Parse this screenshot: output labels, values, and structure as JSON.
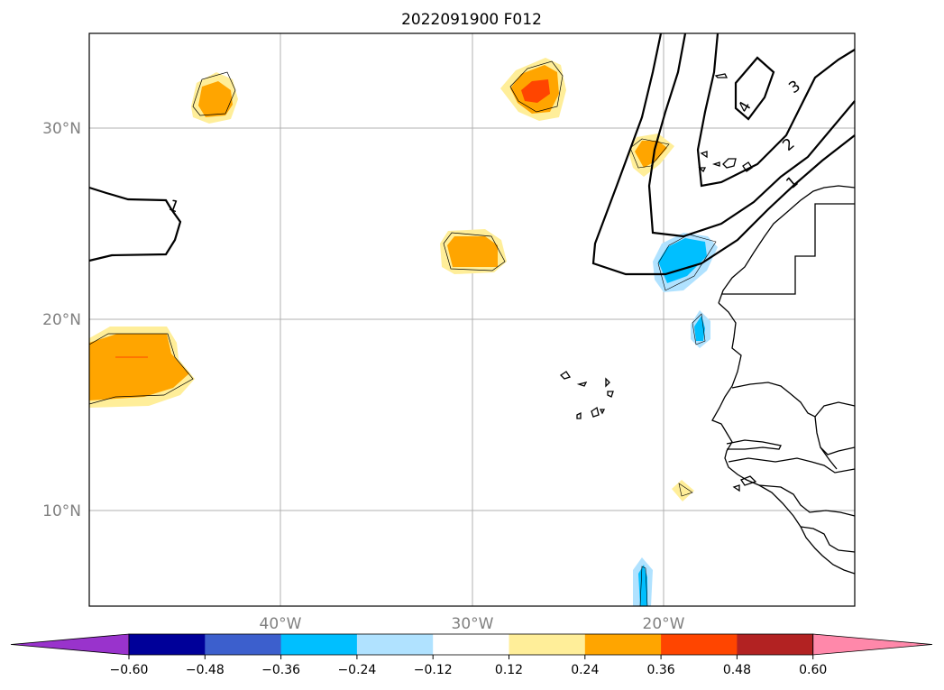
{
  "title": "2022091900 F012",
  "lat_labels": [
    "30°N",
    "20°N",
    "10°N"
  ],
  "lon_labels": [
    "40°W",
    "30°W",
    "20°W"
  ],
  "contour_labels": [
    "1",
    "1",
    "2",
    "3",
    "4"
  ],
  "colorbar": {
    "ticks": [
      "−0.60",
      "−0.48",
      "−0.36",
      "−0.24",
      "−0.12",
      "0.12",
      "0.24",
      "0.36",
      "0.48",
      "0.60"
    ],
    "colors": [
      "#9933cc",
      "#000099",
      "#3c5fcd",
      "#00bfff",
      "#b0e2ff",
      "#ffffff",
      "#ffee99",
      "#ffa500",
      "#ff4500",
      "#b22222",
      "#ff88aa"
    ]
  },
  "colors": {
    "pos_light": "#ffee99",
    "pos_mid": "#ffa500",
    "pos_high": "#ff4500",
    "neg_light": "#b0e2ff",
    "neg_mid": "#00bfff",
    "grid": "#b0b0b0"
  }
}
